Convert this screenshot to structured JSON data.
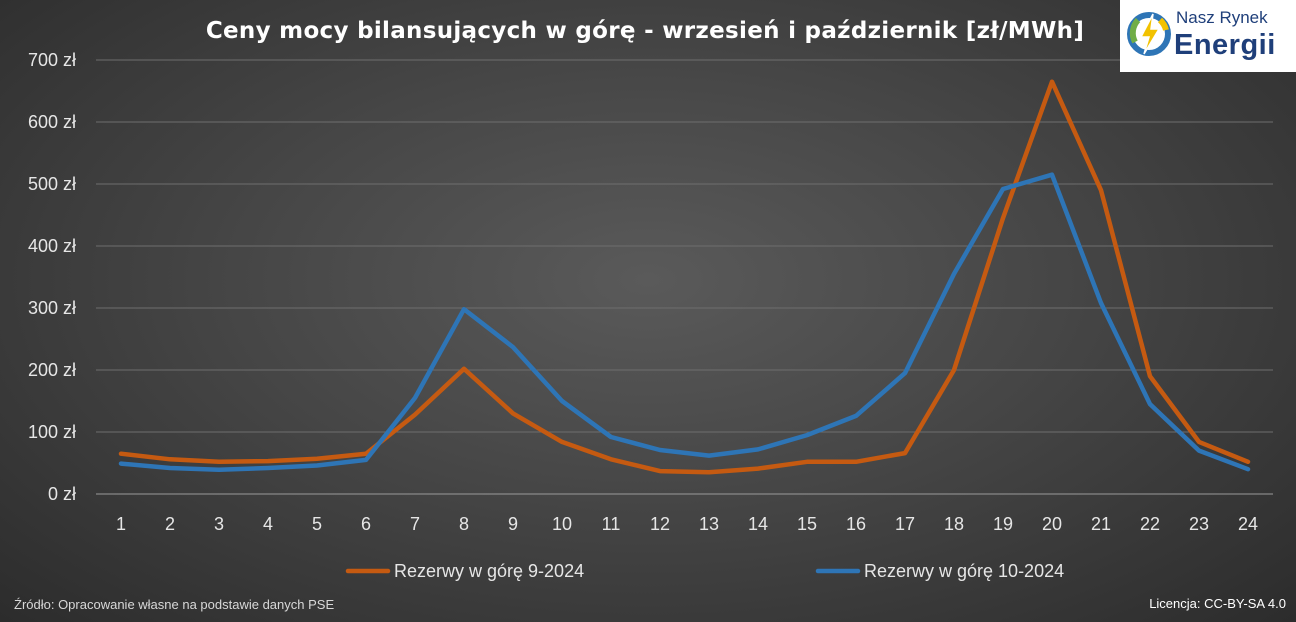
{
  "chart_data": {
    "type": "line",
    "title": "Ceny mocy bilansujących w górę - wrzesień i październik [zł/MWh]",
    "categories": [
      "1",
      "2",
      "3",
      "4",
      "5",
      "6",
      "7",
      "8",
      "9",
      "10",
      "11",
      "12",
      "13",
      "14",
      "15",
      "16",
      "17",
      "18",
      "19",
      "20",
      "21",
      "22",
      "23",
      "24"
    ],
    "y_tick_labels": [
      "0 zł",
      "100 zł",
      "200 zł",
      "300 zł",
      "400 zł",
      "500 zł",
      "600 zł",
      "700 zł"
    ],
    "ylim": [
      0,
      700
    ],
    "grid": true,
    "legend_position": "bottom",
    "series": [
      {
        "name": "Rezerwy w górę 9-2024",
        "color": "#c55a11",
        "values": [
          65,
          56,
          52,
          53,
          57,
          65,
          128,
          202,
          130,
          84,
          56,
          37,
          35,
          41,
          52,
          52,
          66,
          200,
          445,
          665,
          490,
          190,
          84,
          52
        ]
      },
      {
        "name": "Rezerwy w górę 10-2024",
        "color": "#2e75b6",
        "values": [
          49,
          42,
          39,
          42,
          46,
          55,
          155,
          298,
          237,
          150,
          92,
          71,
          62,
          72,
          95,
          126,
          195,
          355,
          492,
          515,
          308,
          145,
          70,
          40
        ]
      }
    ]
  },
  "logo": {
    "line1": "Nasz Rynek",
    "line2": "Energii"
  },
  "footer": {
    "source": "Źródło: Opracowanie własne na podstawie danych PSE",
    "license": "Licencja: CC-BY-SA 4.0"
  }
}
